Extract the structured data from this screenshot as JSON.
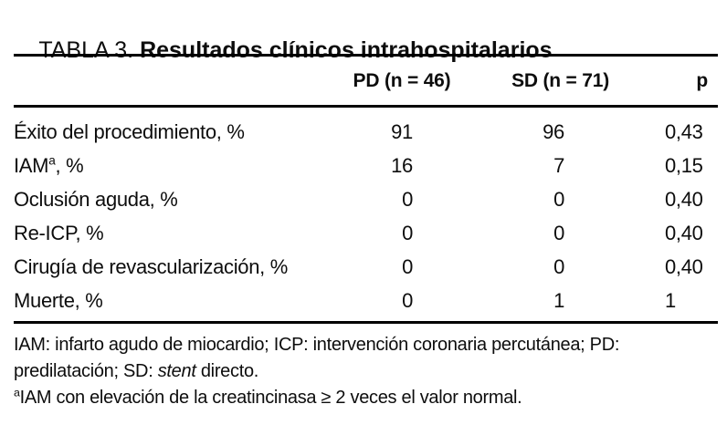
{
  "title": {
    "prefix": "TABLA 3. ",
    "bold": "Resultados clínicos intrahospitalarios"
  },
  "table": {
    "headers": {
      "pd": "PD (n = 46)",
      "sd": "SD (n = 71)",
      "p": "p"
    },
    "rows": [
      {
        "pre": "Éxito del procedimiento, %",
        "sup": "",
        "post": "",
        "pd": "91",
        "sd": "96",
        "p": "0,43"
      },
      {
        "pre": "IAM",
        "sup": "a",
        "post": ", %",
        "pd": "16",
        "sd": "7",
        "p": "0,15"
      },
      {
        "pre": "Oclusión aguda, %",
        "sup": "",
        "post": "",
        "pd": "0",
        "sd": "0",
        "p": "0,40"
      },
      {
        "pre": "Re-ICP, %",
        "sup": "",
        "post": "",
        "pd": "0",
        "sd": "0",
        "p": "0,40"
      },
      {
        "pre": "Cirugía de revascularización, %",
        "sup": "",
        "post": "",
        "pd": "0",
        "sd": "0",
        "p": "0,40"
      },
      {
        "pre": "Muerte, %",
        "sup": "",
        "post": "",
        "pd": "0",
        "sd": "1",
        "p": "1"
      }
    ]
  },
  "footnotes": {
    "line1": "IAM: infarto agudo de miocardio; ICP: intervención coronaria percutánea; PD:",
    "line2": {
      "pre": "predilatación; SD: ",
      "italic": "stent",
      "post": " directo."
    },
    "line3": {
      "sup": "a",
      "text": "IAM con elevación de la creatincinasa ≥ 2 veces el valor normal."
    }
  },
  "colors": {
    "background": "#ffffff",
    "text": "#0d0d0d",
    "rule": "#000000"
  }
}
